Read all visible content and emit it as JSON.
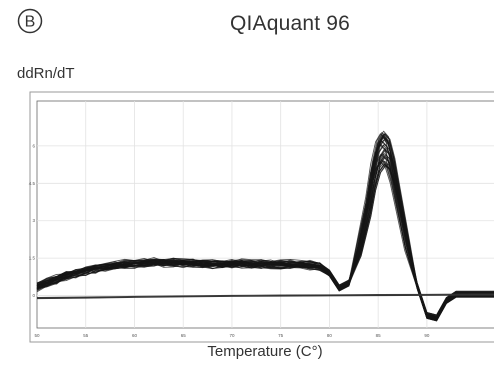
{
  "panel": {
    "letter": "B",
    "title": "QIAquant 96"
  },
  "chart_data": {
    "type": "line",
    "title": "QIAquant 96",
    "ylabel": "ddRn/dT",
    "xlabel": "Temperature (C°)",
    "xlim": [
      50,
      97.5
    ],
    "ylim": [
      -1.3,
      7.8
    ],
    "x_ticks": [
      50,
      55,
      60,
      65,
      70,
      75,
      80,
      85,
      90
    ],
    "y_ticks": [
      0,
      1.5,
      3,
      4.5,
      6
    ],
    "grid": true,
    "series": [
      {
        "role": "amplification-replicates",
        "replicates": 40,
        "x": [
          50,
          51,
          52,
          53,
          54,
          55,
          56,
          57,
          58,
          59,
          60,
          61,
          62,
          63,
          64,
          65,
          66,
          67,
          68,
          69,
          70,
          71,
          72,
          73,
          74,
          75,
          76,
          77,
          78,
          79,
          80,
          81,
          82,
          83,
          84,
          84.5,
          85,
          85.5,
          86,
          86.5,
          87,
          88,
          89,
          90,
          91,
          92,
          93,
          94,
          95,
          96,
          97.5
        ],
        "values": [
          0.35,
          0.5,
          0.65,
          0.8,
          0.9,
          1.0,
          1.08,
          1.15,
          1.2,
          1.25,
          1.28,
          1.3,
          1.32,
          1.33,
          1.33,
          1.32,
          1.3,
          1.28,
          1.27,
          1.27,
          1.28,
          1.28,
          1.27,
          1.27,
          1.26,
          1.25,
          1.25,
          1.24,
          1.22,
          1.18,
          0.9,
          0.3,
          0.5,
          1.8,
          3.6,
          4.8,
          5.6,
          5.9,
          5.7,
          5.0,
          4.0,
          2.0,
          0.4,
          -0.8,
          -0.9,
          -0.2,
          0.05,
          0.05,
          0.05,
          0.05,
          0.05
        ]
      },
      {
        "role": "negative-controls",
        "replicates": 6,
        "x": [
          50,
          55,
          60,
          65,
          70,
          75,
          80,
          85,
          90,
          95,
          97.5
        ],
        "values": [
          -0.1,
          -0.08,
          -0.05,
          -0.03,
          -0.01,
          0.0,
          0.01,
          0.02,
          0.03,
          0.04,
          0.04
        ]
      }
    ]
  }
}
